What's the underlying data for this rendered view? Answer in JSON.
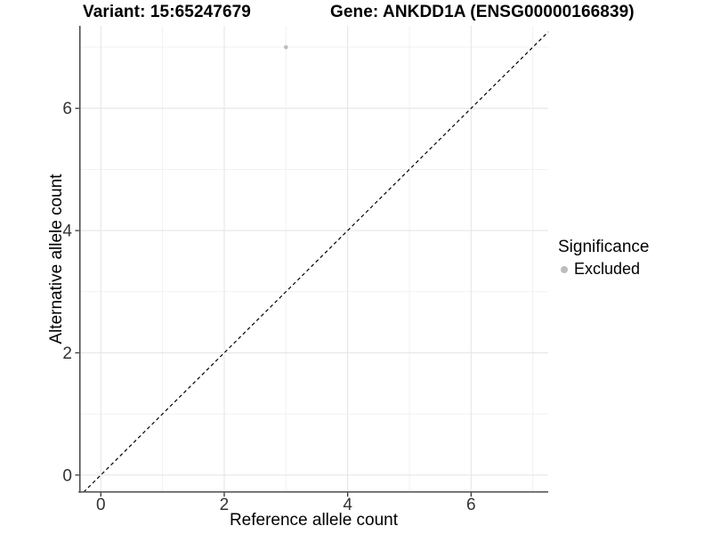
{
  "title_variant": "Variant: 15:65247679",
  "title_gene": "Gene: ANKDD1A (ENSG00000166839)",
  "x_axis": {
    "label": "Reference allele count"
  },
  "y_axis": {
    "label": "Alternative allele count"
  },
  "legend": {
    "title": "Significance",
    "position": "right",
    "items": [
      {
        "label": "Excluded",
        "color": "#bdbdbd"
      }
    ]
  },
  "chart_data": {
    "type": "scatter",
    "title": "Variant: 15:65247679 / Gene: ANKDD1A (ENSG00000166839)",
    "xlabel": "Reference allele count",
    "ylabel": "Alternative allele count",
    "xlim": [
      -0.35,
      7.25
    ],
    "ylim": [
      -0.28,
      7.35
    ],
    "x_ticks": [
      0,
      2,
      4,
      6
    ],
    "y_ticks": [
      0,
      2,
      4,
      6
    ],
    "x_minor_gridlines": [
      1,
      3,
      5,
      7
    ],
    "y_minor_gridlines": [
      1,
      3,
      5,
      7
    ],
    "grid": true,
    "legend_position": "right",
    "series": [
      {
        "name": "Excluded",
        "color": "#bdbdbd",
        "point_radius": 2.3,
        "points": [
          {
            "x": 3,
            "y": 7
          }
        ]
      }
    ],
    "reference_line": {
      "type": "identity y=x",
      "style": "dashed",
      "color": "#000000"
    }
  },
  "colors": {
    "background": "#ffffff",
    "major_grid": "#e6e6e6",
    "minor_grid": "#f1f1f1",
    "axis_line": "#4d4d4d",
    "tick_mark": "#333333",
    "tick_label": "#333333",
    "point": "#bdbdbd"
  }
}
